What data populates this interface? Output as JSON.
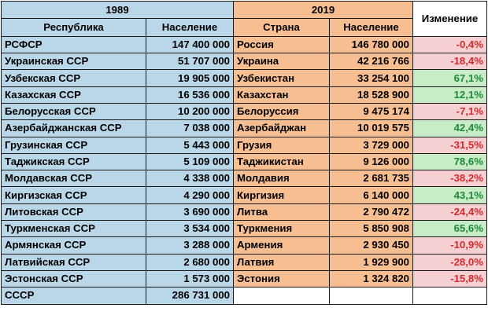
{
  "headers": {
    "year_1989": "1989",
    "year_2019": "2019",
    "change": "Изменение",
    "republic": "Республика",
    "population_1989": "Население",
    "country": "Страна",
    "population_2019": "Население"
  },
  "rows": [
    {
      "republic": "РСФСР",
      "pop1989": "147 400 000",
      "country": "Россия",
      "pop2019": "146 780 000",
      "change": "-0,4%",
      "trend": "neg"
    },
    {
      "republic": "Украинская ССР",
      "pop1989": "51 707 000",
      "country": "Украина",
      "pop2019": "42 216 766",
      "change": "-18,4%",
      "trend": "neg"
    },
    {
      "republic": "Узбекская ССР",
      "pop1989": "19 905 000",
      "country": "Узбекистан",
      "pop2019": "33 254 100",
      "change": "67,1%",
      "trend": "pos"
    },
    {
      "republic": "Казахская ССР",
      "pop1989": "16 536 000",
      "country": "Казахстан",
      "pop2019": "18 528 900",
      "change": "12,1%",
      "trend": "pos"
    },
    {
      "republic": "Белорусская ССР",
      "pop1989": "10 200 000",
      "country": "Белоруссия",
      "pop2019": "9 475 174",
      "change": "-7,1%",
      "trend": "neg"
    },
    {
      "republic": "Азербайджанская ССР",
      "pop1989": "7 038 000",
      "country": "Азербайджан",
      "pop2019": "10 019 575",
      "change": "42,4%",
      "trend": "pos"
    },
    {
      "republic": "Грузинская ССР",
      "pop1989": "5 443 000",
      "country": "Грузия",
      "pop2019": "3 729 000",
      "change": "-31,5%",
      "trend": "neg"
    },
    {
      "republic": "Таджикская ССР",
      "pop1989": "5 109 000",
      "country": "Таджикистан",
      "pop2019": "9 126 000",
      "change": "78,6%",
      "trend": "pos"
    },
    {
      "republic": "Молдавская ССР",
      "pop1989": "4 338 000",
      "country": "Молдавия",
      "pop2019": "2 681 735",
      "change": "-38,2%",
      "trend": "neg"
    },
    {
      "republic": "Киргизская ССР",
      "pop1989": "4 290 000",
      "country": "Киргизия",
      "pop2019": "6 140 000",
      "change": "43,1%",
      "trend": "pos"
    },
    {
      "republic": "Литовская ССР",
      "pop1989": "3 690 000",
      "country": "Литва",
      "pop2019": "2 790 472",
      "change": "-24,4%",
      "trend": "neg"
    },
    {
      "republic": "Туркменская ССР",
      "pop1989": "3 534 000",
      "country": "Туркмения",
      "pop2019": "5 850 908",
      "change": "65,6%",
      "trend": "pos"
    },
    {
      "republic": "Армянская ССР",
      "pop1989": "3 288 000",
      "country": "Армения",
      "pop2019": "2 930 450",
      "change": "-10,9%",
      "trend": "neg"
    },
    {
      "republic": "Латвийская ССР",
      "pop1989": "2 680 000",
      "country": "Латвия",
      "pop2019": "1 929 900",
      "change": "-28,0%",
      "trend": "neg"
    },
    {
      "republic": "Эстонская ССР",
      "pop1989": "1 573 000",
      "country": "Эстония",
      "pop2019": "1 324 820",
      "change": "-15,8%",
      "trend": "neg"
    }
  ],
  "total": {
    "label": "СССР",
    "pop1989": "286 731 000"
  },
  "colors": {
    "blue": "#b9d7e8",
    "orange": "#f7be91",
    "positive_bg": "#c8ecc6",
    "positive_text": "#1c8a3a",
    "negative_bg": "#f6cfd2",
    "negative_text": "#d42a2a"
  }
}
